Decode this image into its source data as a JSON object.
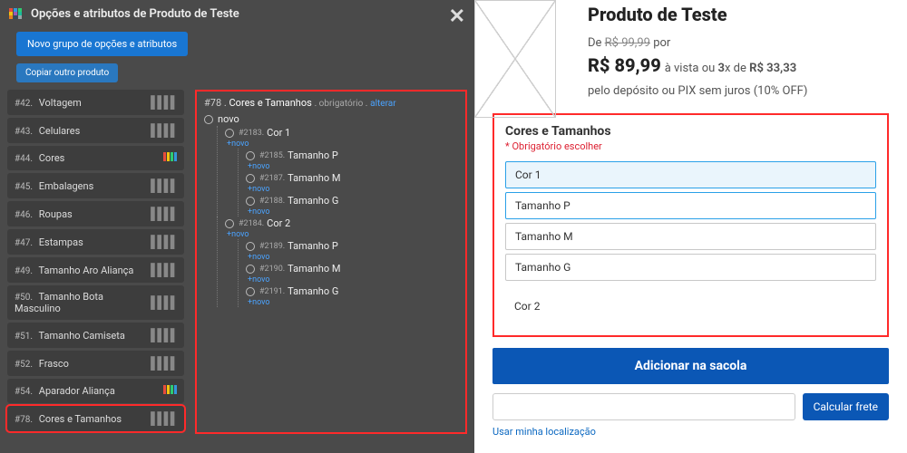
{
  "colors": {
    "accent_blue": "#1976d2",
    "highlight_red": "#ff2a2a",
    "link_blue": "#4aa3ff",
    "right_blue": "#0b57b5"
  },
  "left": {
    "modal_title": "Opções e atributos de Produto de Teste",
    "btn_new_group": "Novo grupo de opções e atributos",
    "btn_copy": "Copiar outro produto",
    "close_glyph": "✕",
    "sidebar": [
      {
        "id": "#42.",
        "label": "Voltagem"
      },
      {
        "id": "#43.",
        "label": "Celulares"
      },
      {
        "id": "#44.",
        "label": "Cores"
      },
      {
        "id": "#45.",
        "label": "Embalagens"
      },
      {
        "id": "#46.",
        "label": "Roupas"
      },
      {
        "id": "#47.",
        "label": "Estampas"
      },
      {
        "id": "#49.",
        "label": "Tamanho Aro Aliança"
      },
      {
        "id": "#50.",
        "label": "Tamanho Bota Masculino"
      },
      {
        "id": "#51.",
        "label": "Tamanho Camiseta"
      },
      {
        "id": "#52.",
        "label": "Frasco"
      },
      {
        "id": "#54.",
        "label": "Aparador Aliança"
      },
      {
        "id": "#78.",
        "label": "Cores e Tamanhos"
      }
    ],
    "selected_sidebar_index": 11,
    "tree": {
      "header_id": "#78 .",
      "header_name": "Cores e Tamanhos",
      "header_meta": ". obrigatório .",
      "header_action": "alterar",
      "root_novo": "novo",
      "novo_label": "+novo",
      "nodes": [
        {
          "level": 1,
          "id": "#2183.",
          "name": "Cor 1"
        },
        {
          "level": 2,
          "id": "#2185.",
          "name": "Tamanho P"
        },
        {
          "level": 2,
          "id": "#2187.",
          "name": "Tamanho M"
        },
        {
          "level": 2,
          "id": "#2188.",
          "name": "Tamanho G"
        },
        {
          "level": 1,
          "id": "#2184.",
          "name": "Cor 2"
        },
        {
          "level": 2,
          "id": "#2189.",
          "name": "Tamanho P"
        },
        {
          "level": 2,
          "id": "#2190.",
          "name": "Tamanho M"
        },
        {
          "level": 2,
          "id": "#2191.",
          "name": "Tamanho G"
        }
      ]
    }
  },
  "right": {
    "title": "Produto de Teste",
    "price_from_prefix": "De ",
    "price_from_value": "R$ 99,99",
    "price_from_suffix": " por",
    "price_main": "R$ 89,99",
    "price_tail_1": " à vista ou ",
    "price_installments_n": "3",
    "price_tail_2": "x de ",
    "price_installment_value": "R$ 33,33",
    "price_tail_3": " pelo depósito ou PIX sem juros (10% OFF)",
    "options_title": "Cores e Tamanhos",
    "options_required": "* Obrigatório escolher",
    "options": [
      {
        "label": "Cor 1",
        "level": 1,
        "selected": true
      },
      {
        "label": "Tamanho P",
        "level": 2,
        "selected": true
      },
      {
        "label": "Tamanho M",
        "level": 2,
        "selected": false
      },
      {
        "label": "Tamanho G",
        "level": 2,
        "selected": false
      },
      {
        "label": "Cor 2",
        "level": 1,
        "selected": false
      }
    ],
    "add_to_bag": "Adicionar na sacola",
    "ship_btn": "Calcular frete",
    "loc_link": "Usar minha localização"
  }
}
